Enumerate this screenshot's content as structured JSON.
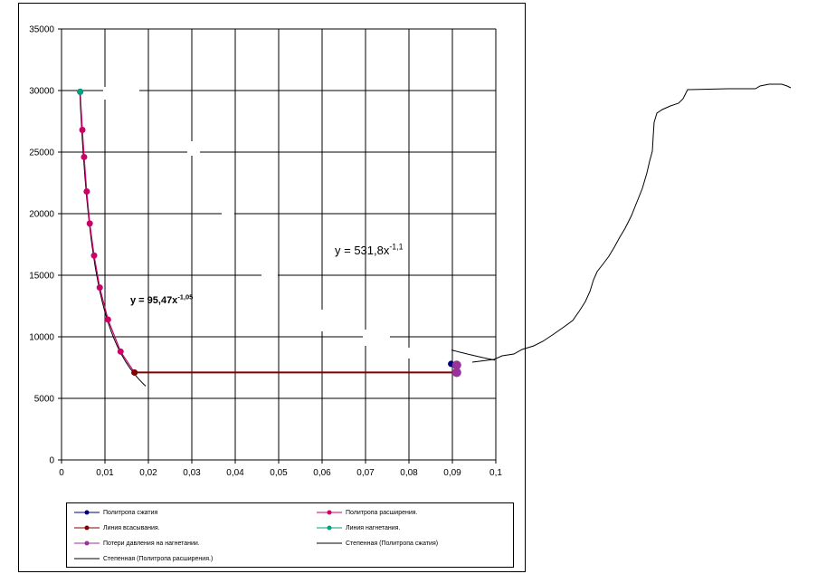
{
  "chart_data": {
    "type": "scatter",
    "xlim": [
      0,
      0.1
    ],
    "ylim": [
      0,
      35000
    ],
    "x_ticks": [
      "0",
      "0,01",
      "0,02",
      "0,03",
      "0,04",
      "0,05",
      "0,06",
      "0,07",
      "0,08",
      "0,09",
      "0,1"
    ],
    "y_ticks": [
      "0",
      "5000",
      "10000",
      "15000",
      "20000",
      "25000",
      "30000",
      "35000"
    ],
    "grid": true,
    "legend_position": "bottom",
    "series": [
      {
        "name": "Политропа сжатия",
        "color": "#000080",
        "marker": "circle",
        "x": [
          0.091,
          0.0897
        ],
        "y": [
          7700,
          7800
        ]
      },
      {
        "name": "Политропа расширения.",
        "color": "#cc0066",
        "marker": "circle",
        "x": [
          0.0043,
          0.0048,
          0.0052,
          0.0058,
          0.0065,
          0.0075,
          0.0088,
          0.0107,
          0.0136,
          0.0168
        ],
        "y": [
          29900,
          26800,
          24600,
          21800,
          19200,
          16600,
          14000,
          11400,
          8800,
          7100
        ]
      },
      {
        "name": "Линия всасывания.",
        "color": "#800000",
        "marker": "circle",
        "x": [
          0.0168,
          0.091
        ],
        "y": [
          7100,
          7100
        ]
      },
      {
        "name": "Линия нагнетания.",
        "color": "#00a080",
        "marker": "circle",
        "x": [
          0.0043,
          0.0043
        ],
        "y": [
          29900,
          29900
        ]
      },
      {
        "name": "Потери давления  на нагнетании.",
        "color": "#993399",
        "marker": "circle",
        "x": [
          0.091,
          0.091
        ],
        "y": [
          7100,
          7700
        ]
      },
      {
        "name": "Степенная  (Политропа сжатия)",
        "color": "#000000",
        "marker": "none",
        "equation": {
          "prefix": "y = 531,8x",
          "exponent": "-1,1"
        }
      },
      {
        "name": "Степенная  (Политропа расширения.)",
        "color": "#000000",
        "marker": "none",
        "equation": {
          "prefix": "y = 95,47x",
          "exponent": "-1,05"
        }
      }
    ]
  }
}
